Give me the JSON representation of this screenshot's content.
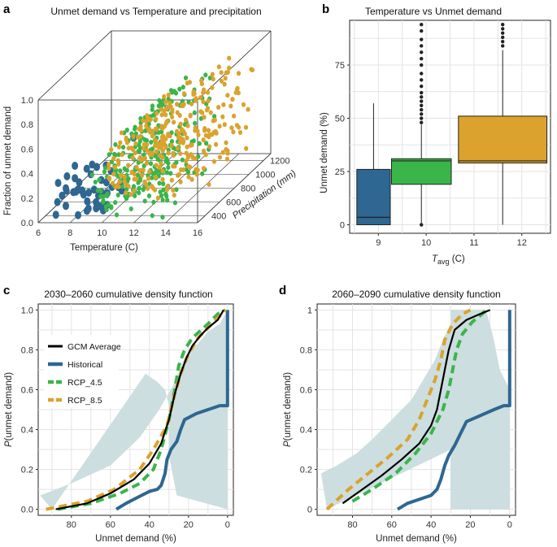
{
  "colors": {
    "historical": "#2e6791",
    "rcp45": "#3ab54a",
    "rcp85": "#dba22e",
    "gcm_avg": "#000000",
    "band": "#c9dcdd"
  },
  "chart_data": [
    {
      "panel": "a",
      "type": "scatter",
      "title": "Unmet demand vs Temperature and precipitation",
      "xlabel": "Temperature (C)",
      "ylabel": "Fraction of unmet demand",
      "zlabel": "Precipitation (mm)",
      "x_ticks": [
        "6",
        "8",
        "10",
        "12",
        "14",
        "16"
      ],
      "y_ticks": [
        "0.0",
        "0.2",
        "0.4",
        "0.6",
        "0.8",
        "1.0"
      ],
      "z_ticks": [
        "400",
        "600",
        "800",
        "1000",
        "1200"
      ],
      "xlim": [
        6,
        16
      ],
      "ylim": [
        0,
        1
      ],
      "zlim": [
        300,
        1300
      ],
      "series": [
        {
          "name": "Historical",
          "color_key": "historical",
          "n": 45,
          "t_range": [
            6.3,
            10.5
          ],
          "u_range": [
            0.0,
            0.55
          ],
          "p_range": [
            350,
            700
          ]
        },
        {
          "name": "RCP_4.5",
          "color_key": "rcp45",
          "n": 260,
          "t_range": [
            9.0,
            13.5
          ],
          "u_range": [
            0.0,
            1.0
          ],
          "p_range": [
            350,
            1100
          ]
        },
        {
          "name": "RCP_8.5",
          "color_key": "rcp85",
          "n": 300,
          "t_range": [
            9.5,
            15.5
          ],
          "u_range": [
            0.15,
            1.0
          ],
          "p_range": [
            350,
            1250
          ]
        }
      ]
    },
    {
      "panel": "b",
      "type": "box",
      "title": "Temperature vs Unmet demand",
      "xlabel": "T_avg (C)",
      "xlabel_main": "T",
      "xlabel_sub": "avg",
      "xlabel_unit": " (C)",
      "ylabel": "Unmet demand (%)",
      "x_ticks": [
        "9",
        "10",
        "11",
        "12"
      ],
      "y_ticks": [
        "0",
        "25",
        "50",
        "75"
      ],
      "xlim": [
        8.4,
        12.6
      ],
      "ylim": [
        -4,
        96
      ],
      "boxes": [
        {
          "center": 8.9,
          "width": 0.7,
          "color_key": "historical",
          "whisker_low": 0,
          "q1": 0,
          "median": 3.5,
          "q3": 26,
          "whisker_high": 57,
          "outliers": []
        },
        {
          "center": 9.9,
          "width": 1.25,
          "color_key": "rcp45",
          "whisker_low": 0,
          "q1": 19,
          "median": 30,
          "q3": 31,
          "whisker_high": 47,
          "outliers": [
            0,
            48,
            50,
            52,
            54,
            56,
            58,
            60,
            62,
            65,
            68,
            71,
            75,
            78,
            81,
            84,
            87,
            91,
            94
          ]
        },
        {
          "center": 11.6,
          "width": 1.85,
          "color_key": "rcp85",
          "whisker_low": 0,
          "q1": 29,
          "median": 30,
          "q3": 51,
          "whisker_high": 82,
          "outliers": [
            84,
            86,
            88,
            90,
            92,
            94
          ]
        }
      ]
    },
    {
      "panel": "c",
      "type": "line",
      "title": "2030–2060 cumulative density function",
      "xlabel": "Unmet demand (%)",
      "ylabel": "P(unmet demand)",
      "ylabel_italic": "P",
      "ylabel_rest": "(unmet demand)",
      "x_ticks": [
        "80",
        "60",
        "40",
        "20",
        "0"
      ],
      "y_ticks": [
        "0.0",
        "0.2",
        "0.4",
        "0.6",
        "0.8",
        "1.0"
      ],
      "x_reversed": true,
      "xlim": [
        97,
        -3
      ],
      "ylim": [
        -0.03,
        1.03
      ],
      "legend": [
        "GCM Average",
        "Historical",
        "RCP_4.5",
        "RCP_8.5"
      ],
      "series": [
        {
          "name": "Band",
          "color_key": "band",
          "band": true,
          "upper": [
            [
              96,
              0.07
            ],
            [
              80,
              0.13
            ],
            [
              60,
              0.22
            ],
            [
              45,
              0.36
            ],
            [
              35,
              0.5
            ],
            [
              28,
              0.62
            ],
            [
              22,
              0.76
            ],
            [
              18,
              0.8
            ],
            [
              10,
              0.89
            ],
            [
              4,
              0.93
            ],
            [
              0,
              1.0
            ],
            [
              0,
              0.0
            ]
          ],
          "lower": [
            [
              0,
              0.0
            ],
            [
              26,
              0.07
            ],
            [
              30,
              0.27
            ],
            [
              30,
              0.52
            ],
            [
              32,
              0.6
            ],
            [
              36,
              0.64
            ],
            [
              42,
              0.68
            ],
            [
              90,
              0.0
            ]
          ]
        },
        {
          "name": "Historical",
          "color_key": "historical",
          "dash": false,
          "points": [
            [
              57,
              0.0
            ],
            [
              52,
              0.03
            ],
            [
              46,
              0.06
            ],
            [
              40,
              0.09
            ],
            [
              36,
              0.1
            ],
            [
              34,
              0.12
            ],
            [
              32,
              0.18
            ],
            [
              31,
              0.25
            ],
            [
              29,
              0.3
            ],
            [
              26,
              0.34
            ],
            [
              24,
              0.4
            ],
            [
              22,
              0.45
            ],
            [
              16,
              0.48
            ],
            [
              10,
              0.5
            ],
            [
              4,
              0.52
            ],
            [
              0,
              0.52
            ],
            [
              0,
              1.0
            ]
          ]
        },
        {
          "name": "RCP_4.5",
          "color_key": "rcp45",
          "dash": true,
          "points": [
            [
              87,
              0.0
            ],
            [
              70,
              0.03
            ],
            [
              55,
              0.08
            ],
            [
              45,
              0.13
            ],
            [
              38,
              0.2
            ],
            [
              34,
              0.3
            ],
            [
              30,
              0.45
            ],
            [
              27,
              0.6
            ],
            [
              25,
              0.72
            ],
            [
              22,
              0.8
            ],
            [
              18,
              0.86
            ],
            [
              10,
              0.93
            ],
            [
              5,
              0.98
            ],
            [
              1,
              1.0
            ]
          ]
        },
        {
          "name": "RCP_8.5",
          "color_key": "rcp85",
          "dash": true,
          "points": [
            [
              93,
              0.0
            ],
            [
              72,
              0.04
            ],
            [
              58,
              0.1
            ],
            [
              45,
              0.2
            ],
            [
              38,
              0.3
            ],
            [
              31,
              0.42
            ],
            [
              27,
              0.58
            ],
            [
              24,
              0.68
            ],
            [
              20,
              0.78
            ],
            [
              15,
              0.86
            ],
            [
              8,
              0.93
            ],
            [
              3,
              0.98
            ],
            [
              1,
              1.0
            ]
          ]
        },
        {
          "name": "GCM Average",
          "color_key": "gcm_avg",
          "dash": false,
          "points": [
            [
              88,
              0.0
            ],
            [
              72,
              0.03
            ],
            [
              60,
              0.08
            ],
            [
              48,
              0.15
            ],
            [
              40,
              0.23
            ],
            [
              34,
              0.33
            ],
            [
              30,
              0.45
            ],
            [
              27,
              0.58
            ],
            [
              24,
              0.68
            ],
            [
              21,
              0.76
            ],
            [
              18,
              0.82
            ],
            [
              14,
              0.87
            ],
            [
              10,
              0.91
            ],
            [
              5,
              0.95
            ],
            [
              2,
              1.0
            ]
          ]
        }
      ]
    },
    {
      "panel": "d",
      "type": "line",
      "title": "2060–2090 cumulative density function",
      "xlabel": "Unmet demand (%)",
      "ylabel": "P(unmet demand)",
      "ylabel_italic": "P",
      "ylabel_rest": "(unmet demand)",
      "x_ticks": [
        "80",
        "60",
        "40",
        "20",
        "0"
      ],
      "y_ticks": [
        "0",
        "0.2",
        "0.4",
        "0.6",
        "0.8",
        "1"
      ],
      "x_reversed": true,
      "xlim": [
        98,
        -3
      ],
      "ylim": [
        -0.03,
        1.03
      ],
      "series": [
        {
          "name": "Band",
          "color_key": "band",
          "band": true,
          "upper": [
            [
              96,
              0.18
            ],
            [
              88,
              0.22
            ],
            [
              78,
              0.28
            ],
            [
              70,
              0.35
            ],
            [
              60,
              0.45
            ],
            [
              50,
              0.55
            ],
            [
              44,
              0.65
            ],
            [
              38,
              0.75
            ],
            [
              34,
              0.85
            ],
            [
              30,
              0.93
            ],
            [
              30,
              1.0
            ],
            [
              12,
              1.0
            ],
            [
              8,
              0.85
            ],
            [
              5,
              0.7
            ],
            [
              0,
              0.6
            ]
          ],
          "lower": [
            [
              0,
              0.6
            ],
            [
              0,
              0.0
            ],
            [
              30,
              0.0
            ],
            [
              30,
              0.3
            ],
            [
              93,
              0.0
            ],
            [
              96,
              0.18
            ]
          ]
        },
        {
          "name": "Historical",
          "color_key": "historical",
          "dash": false,
          "points": [
            [
              57,
              0.0
            ],
            [
              52,
              0.03
            ],
            [
              46,
              0.05
            ],
            [
              40,
              0.07
            ],
            [
              37,
              0.1
            ],
            [
              35,
              0.15
            ],
            [
              33,
              0.22
            ],
            [
              31,
              0.27
            ],
            [
              28,
              0.32
            ],
            [
              25,
              0.38
            ],
            [
              22,
              0.44
            ],
            [
              15,
              0.47
            ],
            [
              8,
              0.5
            ],
            [
              3,
              0.52
            ],
            [
              0,
              0.52
            ],
            [
              0,
              1.0
            ]
          ]
        },
        {
          "name": "RCP_4.5",
          "color_key": "rcp45",
          "dash": true,
          "points": [
            [
              80,
              0.04
            ],
            [
              70,
              0.1
            ],
            [
              58,
              0.18
            ],
            [
              48,
              0.28
            ],
            [
              40,
              0.38
            ],
            [
              34,
              0.5
            ],
            [
              31,
              0.6
            ],
            [
              29,
              0.7
            ],
            [
              27,
              0.8
            ],
            [
              24,
              0.88
            ],
            [
              19,
              0.94
            ],
            [
              14,
              0.98
            ],
            [
              12,
              1.0
            ]
          ]
        },
        {
          "name": "RCP_8.5",
          "color_key": "rcp85",
          "dash": true,
          "points": [
            [
              93,
              0.0
            ],
            [
              82,
              0.1
            ],
            [
              72,
              0.18
            ],
            [
              62,
              0.26
            ],
            [
              52,
              0.35
            ],
            [
              46,
              0.45
            ],
            [
              42,
              0.55
            ],
            [
              38,
              0.65
            ],
            [
              35,
              0.75
            ],
            [
              33,
              0.85
            ],
            [
              29,
              0.93
            ],
            [
              24,
              0.98
            ],
            [
              20,
              1.0
            ]
          ]
        },
        {
          "name": "GCM Average",
          "color_key": "gcm_avg",
          "dash": false,
          "points": [
            [
              85,
              0.03
            ],
            [
              75,
              0.1
            ],
            [
              65,
              0.17
            ],
            [
              55,
              0.25
            ],
            [
              46,
              0.33
            ],
            [
              40,
              0.42
            ],
            [
              37,
              0.5
            ],
            [
              35,
              0.6
            ],
            [
              33,
              0.7
            ],
            [
              31,
              0.8
            ],
            [
              28,
              0.9
            ],
            [
              22,
              0.95
            ],
            [
              15,
              0.98
            ],
            [
              10,
              1.0
            ]
          ]
        }
      ]
    }
  ]
}
